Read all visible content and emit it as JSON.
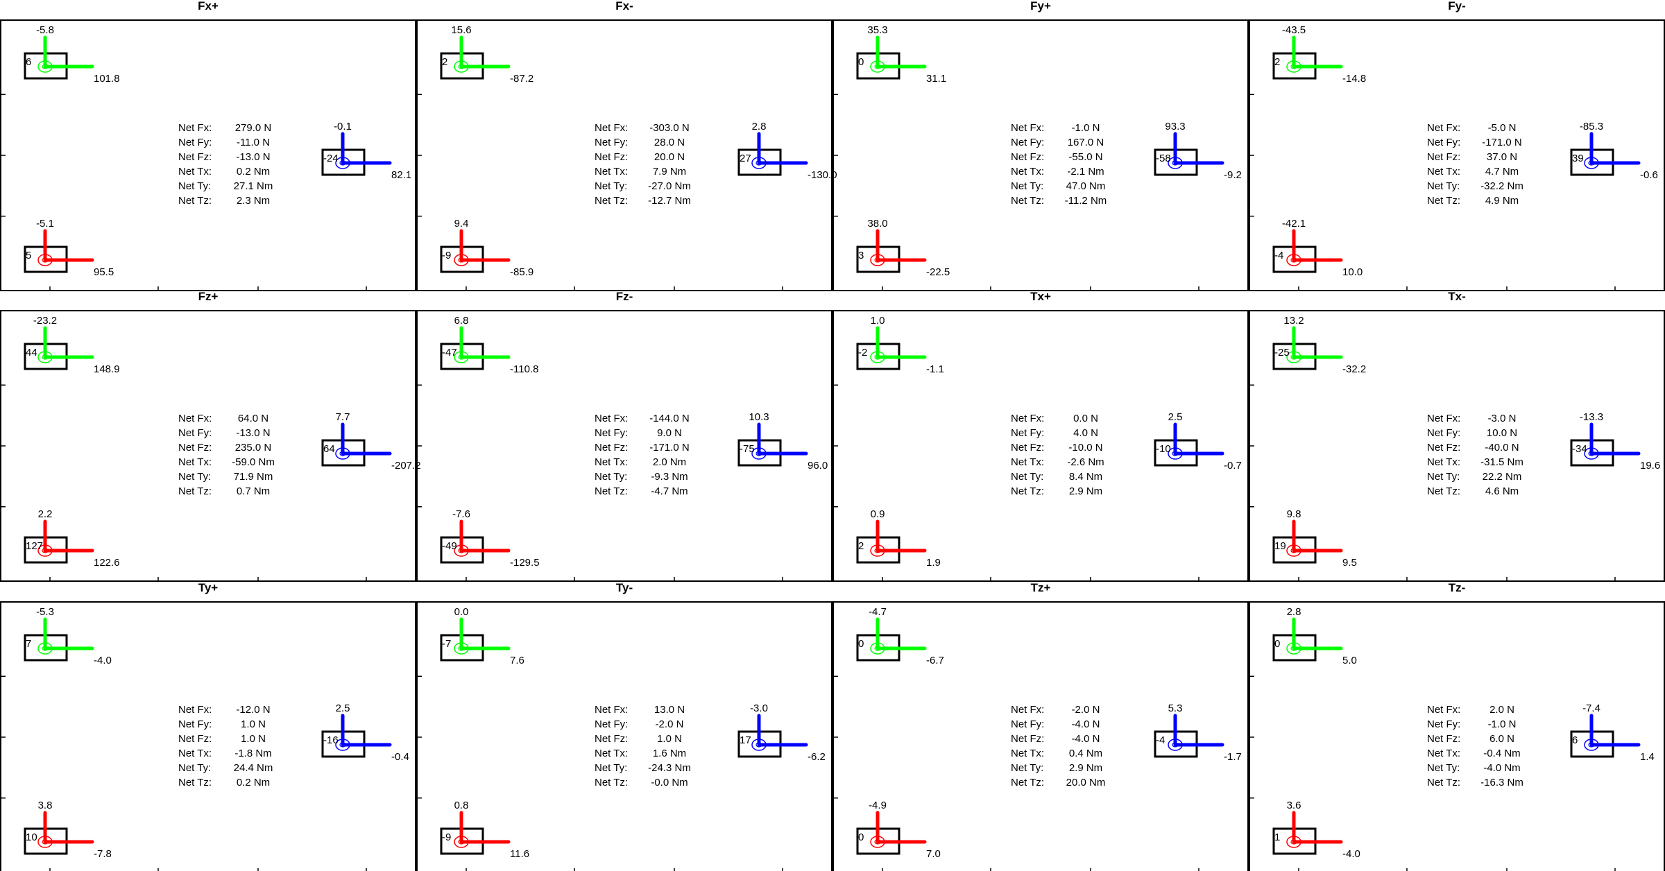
{
  "figure": {
    "units": {
      "force": "N",
      "torque": "Nm"
    },
    "net_labels": [
      "Net Fx:",
      "Net Fy:",
      "Net Fz:",
      "Net Tx:",
      "Net Ty:",
      "Net Tz:"
    ],
    "colors": {
      "sensor_top": "#00ff00",
      "sensor_bottom": "#ff0000",
      "sensor_right": "#0000ff",
      "frame": "#000000"
    }
  },
  "chart_data": [
    {
      "type": "other",
      "title": "Fx+",
      "sensors": {
        "top": {
          "up": "-5.8",
          "right": "101.8",
          "center": "6"
        },
        "right": {
          "up": "-0.1",
          "right": "82.1",
          "center": "-24"
        },
        "bottom": {
          "up": "-5.1",
          "right": "95.5",
          "center": "5"
        }
      },
      "net": [
        {
          "label": "Net Fx:",
          "value": "279.0 N"
        },
        {
          "label": "Net Fy:",
          "value": "-11.0 N"
        },
        {
          "label": "Net Fz:",
          "value": "-13.0 N"
        },
        {
          "label": "Net Tx:",
          "value": "0.2 Nm"
        },
        {
          "label": "Net Ty:",
          "value": "27.1 Nm"
        },
        {
          "label": "Net Tz:",
          "value": "2.3 Nm"
        }
      ]
    },
    {
      "type": "other",
      "title": "Fx-",
      "sensors": {
        "top": {
          "up": "15.6",
          "right": "-87.2",
          "center": "2"
        },
        "right": {
          "up": "2.8",
          "right": "-130.0",
          "center": "27"
        },
        "bottom": {
          "up": "9.4",
          "right": "-85.9",
          "center": "-9"
        }
      },
      "net": [
        {
          "label": "Net Fx:",
          "value": "-303.0 N"
        },
        {
          "label": "Net Fy:",
          "value": "28.0 N"
        },
        {
          "label": "Net Fz:",
          "value": "20.0 N"
        },
        {
          "label": "Net Tx:",
          "value": "7.9 Nm"
        },
        {
          "label": "Net Ty:",
          "value": "-27.0 Nm"
        },
        {
          "label": "Net Tz:",
          "value": "-12.7 Nm"
        }
      ]
    },
    {
      "type": "other",
      "title": "Fy+",
      "sensors": {
        "top": {
          "up": "35.3",
          "right": "31.1",
          "center": "0"
        },
        "right": {
          "up": "93.3",
          "right": "-9.2",
          "center": "-58"
        },
        "bottom": {
          "up": "38.0",
          "right": "-22.5",
          "center": "3"
        }
      },
      "net": [
        {
          "label": "Net Fx:",
          "value": "-1.0 N"
        },
        {
          "label": "Net Fy:",
          "value": "167.0 N"
        },
        {
          "label": "Net Fz:",
          "value": "-55.0 N"
        },
        {
          "label": "Net Tx:",
          "value": "-2.1 Nm"
        },
        {
          "label": "Net Ty:",
          "value": "47.0 Nm"
        },
        {
          "label": "Net Tz:",
          "value": "-11.2 Nm"
        }
      ]
    },
    {
      "type": "other",
      "title": "Fy-",
      "sensors": {
        "top": {
          "up": "-43.5",
          "right": "-14.8",
          "center": "2"
        },
        "right": {
          "up": "-85.3",
          "right": "-0.6",
          "center": "39"
        },
        "bottom": {
          "up": "-42.1",
          "right": "10.0",
          "center": "-4"
        }
      },
      "net": [
        {
          "label": "Net Fx:",
          "value": "-5.0 N"
        },
        {
          "label": "Net Fy:",
          "value": "-171.0 N"
        },
        {
          "label": "Net Fz:",
          "value": "37.0 N"
        },
        {
          "label": "Net Tx:",
          "value": "4.7 Nm"
        },
        {
          "label": "Net Ty:",
          "value": "-32.2 Nm"
        },
        {
          "label": "Net Tz:",
          "value": "4.9 Nm"
        }
      ]
    },
    {
      "type": "other",
      "title": "Fz+",
      "sensors": {
        "top": {
          "up": "-23.2",
          "right": "148.9",
          "center": "44"
        },
        "right": {
          "up": "7.7",
          "right": "-207.2",
          "center": "64"
        },
        "bottom": {
          "up": "2.2",
          "right": "122.6",
          "center": "127"
        }
      },
      "net": [
        {
          "label": "Net Fx:",
          "value": "64.0 N"
        },
        {
          "label": "Net Fy:",
          "value": "-13.0 N"
        },
        {
          "label": "Net Fz:",
          "value": "235.0 N"
        },
        {
          "label": "Net Tx:",
          "value": "-59.0 Nm"
        },
        {
          "label": "Net Ty:",
          "value": "71.9 Nm"
        },
        {
          "label": "Net Tz:",
          "value": "0.7 Nm"
        }
      ]
    },
    {
      "type": "other",
      "title": "Fz-",
      "sensors": {
        "top": {
          "up": "6.8",
          "right": "-110.8",
          "center": "-47"
        },
        "right": {
          "up": "10.3",
          "right": "96.0",
          "center": "-75"
        },
        "bottom": {
          "up": "-7.6",
          "right": "-129.5",
          "center": "-49"
        }
      },
      "net": [
        {
          "label": "Net Fx:",
          "value": "-144.0 N"
        },
        {
          "label": "Net Fy:",
          "value": "9.0 N"
        },
        {
          "label": "Net Fz:",
          "value": "-171.0 N"
        },
        {
          "label": "Net Tx:",
          "value": "2.0 Nm"
        },
        {
          "label": "Net Ty:",
          "value": "-9.3 Nm"
        },
        {
          "label": "Net Tz:",
          "value": "-4.7 Nm"
        }
      ]
    },
    {
      "type": "other",
      "title": "Tx+",
      "sensors": {
        "top": {
          "up": "1.0",
          "right": "-1.1",
          "center": "-2"
        },
        "right": {
          "up": "2.5",
          "right": "-0.7",
          "center": "-10"
        },
        "bottom": {
          "up": "0.9",
          "right": "1.9",
          "center": "2"
        }
      },
      "net": [
        {
          "label": "Net Fx:",
          "value": "0.0 N"
        },
        {
          "label": "Net Fy:",
          "value": "4.0 N"
        },
        {
          "label": "Net Fz:",
          "value": "-10.0 N"
        },
        {
          "label": "Net Tx:",
          "value": "-2.6 Nm"
        },
        {
          "label": "Net Ty:",
          "value": "8.4 Nm"
        },
        {
          "label": "Net Tz:",
          "value": "2.9 Nm"
        }
      ]
    },
    {
      "type": "other",
      "title": "Tx-",
      "sensors": {
        "top": {
          "up": "13.2",
          "right": "-32.2",
          "center": "-25"
        },
        "right": {
          "up": "-13.3",
          "right": "19.6",
          "center": "-34"
        },
        "bottom": {
          "up": "9.8",
          "right": "9.5",
          "center": "19"
        }
      },
      "net": [
        {
          "label": "Net Fx:",
          "value": "-3.0 N"
        },
        {
          "label": "Net Fy:",
          "value": "10.0 N"
        },
        {
          "label": "Net Fz:",
          "value": "-40.0 N"
        },
        {
          "label": "Net Tx:",
          "value": "-31.5 Nm"
        },
        {
          "label": "Net Ty:",
          "value": "22.2 Nm"
        },
        {
          "label": "Net Tz:",
          "value": "4.6 Nm"
        }
      ]
    },
    {
      "type": "other",
      "title": "Ty+",
      "sensors": {
        "top": {
          "up": "-5.3",
          "right": "-4.0",
          "center": "7"
        },
        "right": {
          "up": "2.5",
          "right": "-0.4",
          "center": "-16"
        },
        "bottom": {
          "up": "3.8",
          "right": "-7.8",
          "center": "10"
        }
      },
      "net": [
        {
          "label": "Net Fx:",
          "value": "-12.0 N"
        },
        {
          "label": "Net Fy:",
          "value": "1.0 N"
        },
        {
          "label": "Net Fz:",
          "value": "1.0 N"
        },
        {
          "label": "Net Tx:",
          "value": "-1.8 Nm"
        },
        {
          "label": "Net Ty:",
          "value": "24.4 Nm"
        },
        {
          "label": "Net Tz:",
          "value": "0.2 Nm"
        }
      ]
    },
    {
      "type": "other",
      "title": "Ty-",
      "sensors": {
        "top": {
          "up": "0.0",
          "right": "7.6",
          "center": "-7"
        },
        "right": {
          "up": "-3.0",
          "right": "-6.2",
          "center": "17"
        },
        "bottom": {
          "up": "0.8",
          "right": "11.6",
          "center": "-9"
        }
      },
      "net": [
        {
          "label": "Net Fx:",
          "value": "13.0 N"
        },
        {
          "label": "Net Fy:",
          "value": "-2.0 N"
        },
        {
          "label": "Net Fz:",
          "value": "1.0 N"
        },
        {
          "label": "Net Tx:",
          "value": "1.6 Nm"
        },
        {
          "label": "Net Ty:",
          "value": "-24.3 Nm"
        },
        {
          "label": "Net Tz:",
          "value": "-0.0 Nm"
        }
      ]
    },
    {
      "type": "other",
      "title": "Tz+",
      "sensors": {
        "top": {
          "up": "-4.7",
          "right": "-6.7",
          "center": "0"
        },
        "right": {
          "up": "5.3",
          "right": "-1.7",
          "center": "-4"
        },
        "bottom": {
          "up": "-4.9",
          "right": "7.0",
          "center": "0"
        }
      },
      "net": [
        {
          "label": "Net Fx:",
          "value": "-2.0 N"
        },
        {
          "label": "Net Fy:",
          "value": "-4.0 N"
        },
        {
          "label": "Net Fz:",
          "value": "-4.0 N"
        },
        {
          "label": "Net Tx:",
          "value": "0.4 Nm"
        },
        {
          "label": "Net Ty:",
          "value": "2.9 Nm"
        },
        {
          "label": "Net Tz:",
          "value": "20.0 Nm"
        }
      ]
    },
    {
      "type": "other",
      "title": "Tz-",
      "sensors": {
        "top": {
          "up": "2.8",
          "right": "5.0",
          "center": "0"
        },
        "right": {
          "up": "-7.4",
          "right": "1.4",
          "center": "6"
        },
        "bottom": {
          "up": "3.6",
          "right": "-4.0",
          "center": "1"
        }
      },
      "net": [
        {
          "label": "Net Fx:",
          "value": "2.0 N"
        },
        {
          "label": "Net Fy:",
          "value": "-1.0 N"
        },
        {
          "label": "Net Fz:",
          "value": "6.0 N"
        },
        {
          "label": "Net Tx:",
          "value": "-0.4 Nm"
        },
        {
          "label": "Net Ty:",
          "value": "-4.0 Nm"
        },
        {
          "label": "Net Tz:",
          "value": "-16.3 Nm"
        }
      ]
    }
  ]
}
